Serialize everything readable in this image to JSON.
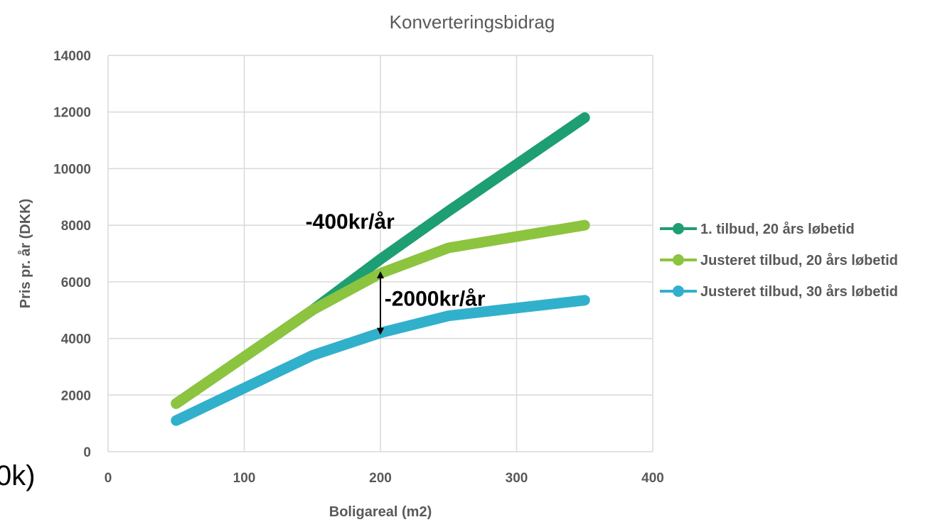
{
  "chart_data": {
    "type": "line",
    "title": "Konverteringsbidrag",
    "xlabel": "Boligareal (m2)",
    "ylabel": "Pris pr. år (DKK)",
    "xlim": [
      0,
      400
    ],
    "ylim": [
      0,
      14000
    ],
    "xticks": [
      "0",
      "100",
      "200",
      "300",
      "400"
    ],
    "yticks": [
      "0",
      "2000",
      "4000",
      "6000",
      "8000",
      "10000",
      "12000",
      "14000"
    ],
    "grid": true,
    "legend_position": "right",
    "series": [
      {
        "name": "1. tilbud, 20 års løbetid",
        "color": "#1e9e73",
        "x": [
          50,
          150,
          200,
          250,
          350
        ],
        "y": [
          1700,
          5000,
          6800,
          8500,
          11800
        ]
      },
      {
        "name": "Justeret tilbud, 20 års løbetid",
        "color": "#8cc43f",
        "x": [
          50,
          150,
          200,
          250,
          350
        ],
        "y": [
          1700,
          5000,
          6300,
          7200,
          8000
        ]
      },
      {
        "name": "Justeret tilbud, 30 års løbetid",
        "color": "#31b0cb",
        "x": [
          50,
          150,
          200,
          250,
          350
        ],
        "y": [
          1100,
          3400,
          4200,
          4800,
          5350
        ]
      }
    ],
    "annotations": [
      {
        "text": "-400kr/år",
        "x": 145,
        "y": 7880
      },
      {
        "text": "-2000kr/år",
        "x": 203,
        "y": 5150
      }
    ],
    "arrow": {
      "x": 200,
      "y_from": 6300,
      "y_to": 4200
    }
  },
  "edge_text": "0k)"
}
